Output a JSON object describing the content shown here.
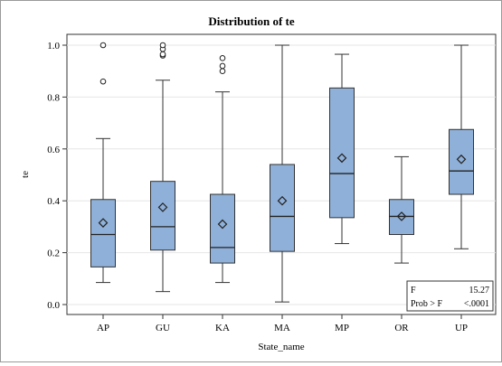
{
  "chart_data": {
    "type": "box",
    "title": "Distribution of te",
    "xlabel": "State_name",
    "ylabel": "te",
    "ylim": [
      0.0,
      1.0
    ],
    "yticks": [
      "0.0",
      "0.2",
      "0.4",
      "0.6",
      "0.8",
      "1.0"
    ],
    "grid": "horizontal",
    "box_color": "#8fb0d8",
    "categories": [
      "AP",
      "GU",
      "KA",
      "MA",
      "MP",
      "OR",
      "UP"
    ],
    "boxes": [
      {
        "category": "AP",
        "min": 0.085,
        "q1": 0.145,
        "median": 0.27,
        "q3": 0.405,
        "max": 0.64,
        "mean": 0.315,
        "outliers": [
          0.86,
          1.0
        ]
      },
      {
        "category": "GU",
        "min": 0.05,
        "q1": 0.21,
        "median": 0.3,
        "q3": 0.475,
        "max": 0.865,
        "mean": 0.375,
        "outliers": [
          0.96,
          0.965,
          0.985,
          1.0
        ]
      },
      {
        "category": "KA",
        "min": 0.085,
        "q1": 0.16,
        "median": 0.22,
        "q3": 0.425,
        "max": 0.82,
        "mean": 0.31,
        "outliers": [
          0.9,
          0.92,
          0.95
        ]
      },
      {
        "category": "MA",
        "min": 0.01,
        "q1": 0.205,
        "median": 0.34,
        "q3": 0.54,
        "max": 1.0,
        "mean": 0.4,
        "outliers": []
      },
      {
        "category": "MP",
        "min": 0.235,
        "q1": 0.335,
        "median": 0.505,
        "q3": 0.835,
        "max": 0.965,
        "mean": 0.565,
        "outliers": []
      },
      {
        "category": "OR",
        "min": 0.16,
        "q1": 0.27,
        "median": 0.34,
        "q3": 0.405,
        "max": 0.57,
        "mean": 0.34,
        "outliers": []
      },
      {
        "category": "UP",
        "min": 0.215,
        "q1": 0.425,
        "median": 0.515,
        "q3": 0.675,
        "max": 1.0,
        "mean": 0.56,
        "outliers": []
      }
    ],
    "stats_inset": {
      "f_label": "F",
      "f_value": "15.27",
      "p_label": "Prob > F",
      "p_value": "<.0001",
      "position": "bottom-right"
    }
  }
}
